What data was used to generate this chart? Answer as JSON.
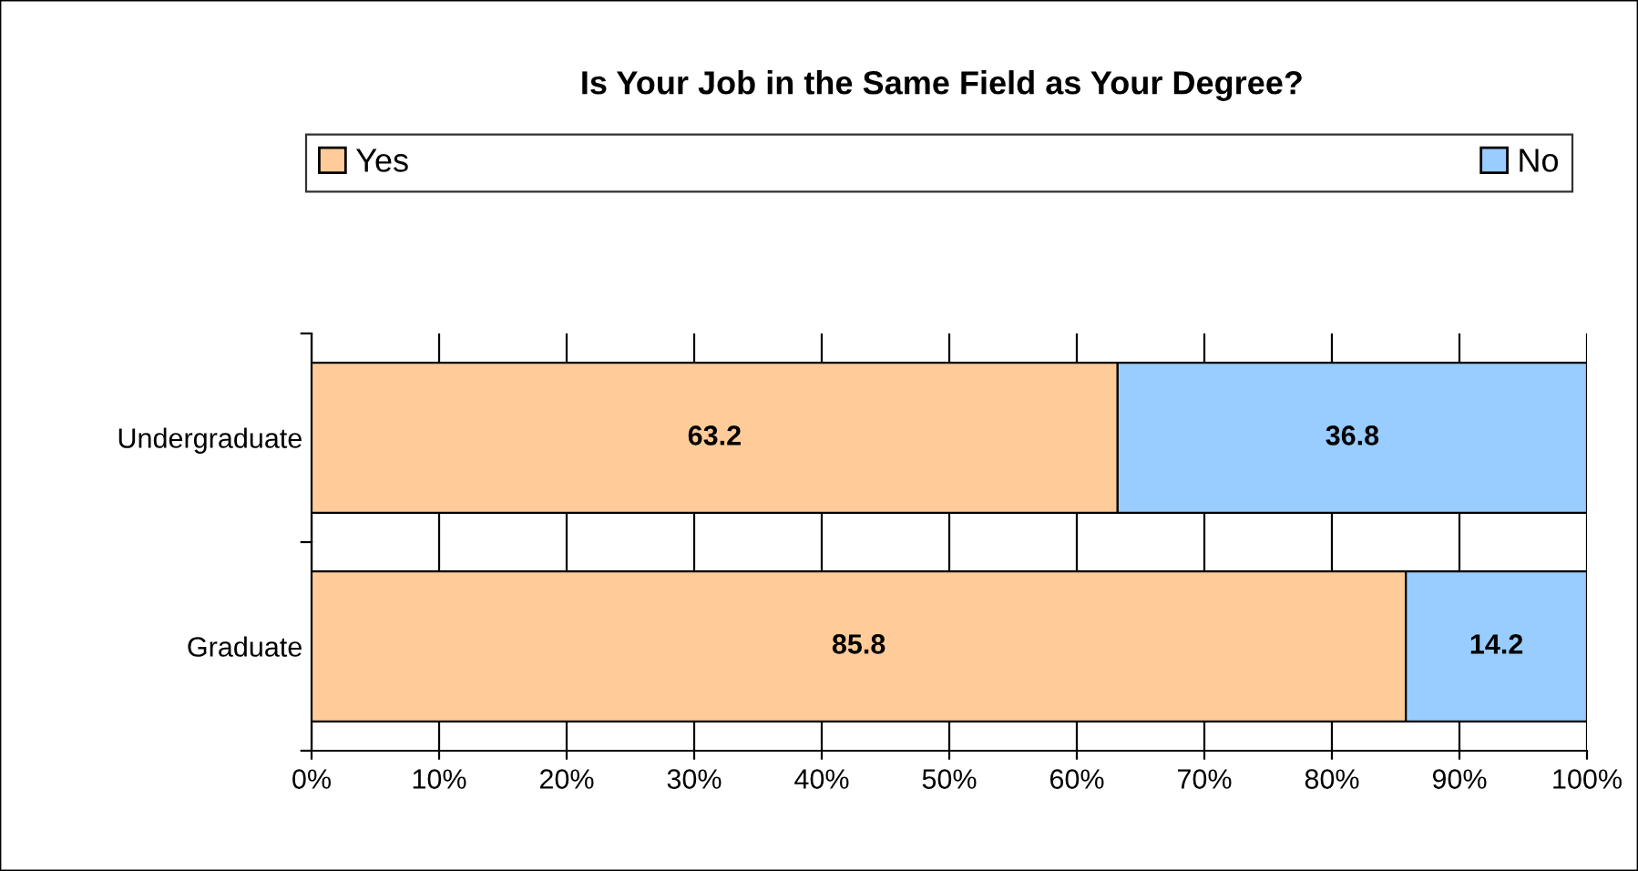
{
  "chart_data": {
    "type": "bar",
    "title": "Is Your Job in the Same Field as Your Degree?",
    "orientation": "horizontal",
    "stacked": true,
    "categories": [
      "Undergraduate",
      "Graduate"
    ],
    "series": [
      {
        "name": "Yes",
        "color": "#ffcc99",
        "values": [
          63.2,
          85.8
        ]
      },
      {
        "name": "No",
        "color": "#99ccff",
        "values": [
          36.8,
          14.2
        ]
      }
    ],
    "xlim": [
      0,
      100
    ],
    "xticks": [
      {
        "value": 0,
        "label": "0%"
      },
      {
        "value": 10,
        "label": "10%"
      },
      {
        "value": 20,
        "label": "20%"
      },
      {
        "value": 30,
        "label": "30%"
      },
      {
        "value": 40,
        "label": "40%"
      },
      {
        "value": 50,
        "label": "50%"
      },
      {
        "value": 60,
        "label": "60%"
      },
      {
        "value": 70,
        "label": "70%"
      },
      {
        "value": 80,
        "label": "80%"
      },
      {
        "value": 90,
        "label": "90%"
      },
      {
        "value": 100,
        "label": "100%"
      }
    ],
    "grid": "x",
    "legend": "top",
    "data_labels": true
  }
}
